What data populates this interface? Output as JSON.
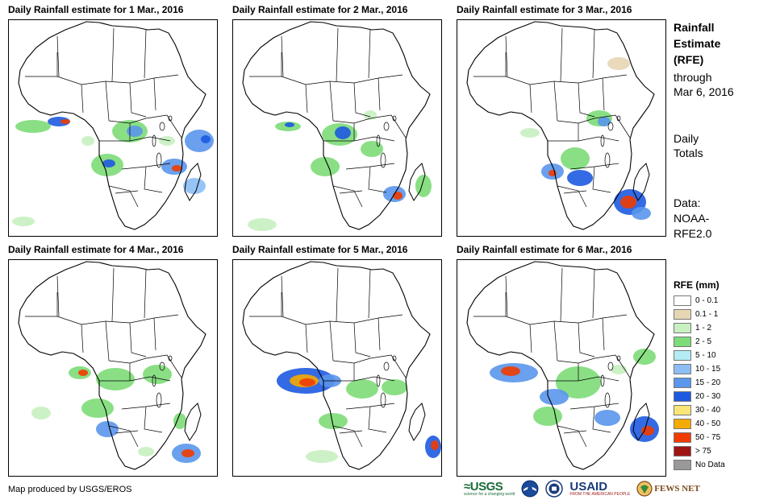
{
  "panels": [
    {
      "title": "Daily Rainfall estimate for 1 Mar., 2016",
      "id": "day-1"
    },
    {
      "title": "Daily Rainfall estimate for 2 Mar., 2016",
      "id": "day-2"
    },
    {
      "title": "Daily Rainfall estimate for 3 Mar., 2016",
      "id": "day-3"
    },
    {
      "title": "Daily Rainfall estimate for 4 Mar., 2016",
      "id": "day-4"
    },
    {
      "title": "Daily Rainfall estimate for 5 Mar., 2016",
      "id": "day-5"
    },
    {
      "title": "Daily Rainfall estimate for 6 Mar., 2016",
      "id": "day-6"
    }
  ],
  "side_info": {
    "title_line1": "Rainfall",
    "title_line2": "Estimate",
    "title_line3": "(RFE)",
    "through": "through",
    "date": "Mar 6, 2016",
    "totals_line1": "Daily",
    "totals_line2": "Totals",
    "data_line1": "Data:",
    "data_line2": "NOAA-",
    "data_line3": "RFE2.0"
  },
  "legend": {
    "title": "RFE (mm)",
    "classes": [
      {
        "label": "0 - 0.1",
        "color": "#ffffff"
      },
      {
        "label": "0.1 - 1",
        "color": "#e6d6b4"
      },
      {
        "label": "1 - 2",
        "color": "#c8f0c0"
      },
      {
        "label": "2 - 5",
        "color": "#7ddc78"
      },
      {
        "label": "5 - 10",
        "color": "#b4ecf5"
      },
      {
        "label": "10 - 15",
        "color": "#8cbef5"
      },
      {
        "label": "15 - 20",
        "color": "#5a96eb"
      },
      {
        "label": "20 - 30",
        "color": "#1e5ae1"
      },
      {
        "label": "30 - 40",
        "color": "#fae678"
      },
      {
        "label": "40 - 50",
        "color": "#f5aa00"
      },
      {
        "label": "50 - 75",
        "color": "#f03c00"
      },
      {
        "label": "> 75",
        "color": "#a01414"
      },
      {
        "label": "No Data",
        "color": "#999999"
      }
    ]
  },
  "footer": {
    "credit": "Map produced by USGS/EROS",
    "logo_usgs": "≈USGS",
    "logo_usgs_sub": "science for a changing world",
    "logo_usaid": "USAID",
    "logo_usaid_sub": "FROM THE AMERICAN PEOPLE",
    "logo_fews": "FEWS NET"
  }
}
